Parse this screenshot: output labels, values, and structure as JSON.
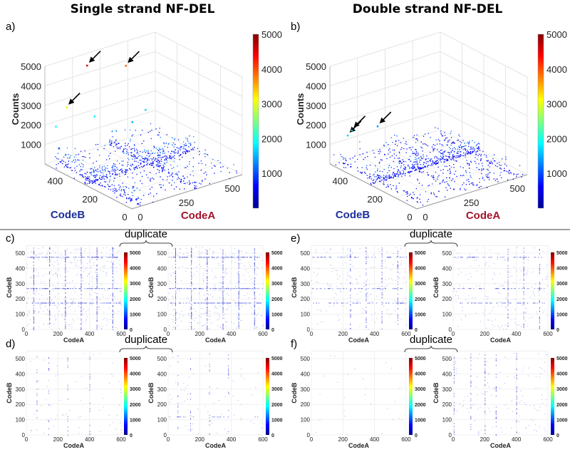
{
  "titles": {
    "left": "Single strand NF-DEL",
    "right": "Double strand NF-DEL"
  },
  "duplicate_label": "duplicate",
  "chart_data": [
    {
      "panel": "a)",
      "type": "scatter3d",
      "title": "Single strand NF-DEL",
      "xlabel": "CodeA",
      "ylabel": "CodeB",
      "zlabel": "Counts",
      "xlim": [
        0,
        600
      ],
      "ylim": [
        0,
        500
      ],
      "zlim": [
        0,
        5000
      ],
      "xticks": [
        0,
        250,
        500
      ],
      "yticks": [
        0,
        200,
        400
      ],
      "zticks": [
        1000,
        2000,
        3000,
        4000,
        5000
      ],
      "colorbar": {
        "colormap": "jet",
        "range": [
          0,
          5000
        ],
        "ticks": [
          1000,
          2000,
          3000,
          4000,
          5000
        ]
      },
      "highlighted_points": [
        {
          "codeA": 200,
          "codeB": 470,
          "count": 4600,
          "arrow": true
        },
        {
          "codeA": 420,
          "codeB": 480,
          "count": 3900,
          "arrow": true
        },
        {
          "codeA": 60,
          "codeB": 440,
          "count": 3000,
          "arrow": true
        },
        {
          "codeA": 40,
          "codeB": 480,
          "count": 1900
        },
        {
          "codeA": 250,
          "codeB": 480,
          "count": 1800
        },
        {
          "codeA": 480,
          "codeB": 430,
          "count": 1700
        },
        {
          "codeA": 380,
          "codeB": 400,
          "count": 1500
        },
        {
          "codeA": 10,
          "codeB": 430,
          "count": 1100
        }
      ],
      "dense_lines_codeA": [
        45,
        145,
        245,
        345,
        445,
        545
      ],
      "dense_lines_codeB": [
        175,
        270,
        475
      ],
      "background_count_range": [
        0,
        1000
      ]
    },
    {
      "panel": "b)",
      "type": "scatter3d",
      "title": "Double strand NF-DEL",
      "xlabel": "CodeA",
      "ylabel": "CodeB",
      "zlabel": "Counts",
      "xlim": [
        0,
        600
      ],
      "ylim": [
        0,
        500
      ],
      "zlim": [
        0,
        5000
      ],
      "xticks": [
        0,
        250,
        500
      ],
      "yticks": [
        0,
        200,
        400
      ],
      "zticks": [
        1000,
        2000,
        3000,
        4000,
        5000
      ],
      "colorbar": {
        "colormap": "jet",
        "range": [
          0,
          5000
        ],
        "ticks": [
          1000,
          2000,
          3000,
          4000,
          5000
        ]
      },
      "highlighted_points": [
        {
          "codeA": 30,
          "codeB": 430,
          "count": 1700,
          "arrow": true
        },
        {
          "codeA": 90,
          "codeB": 470,
          "count": 1600,
          "arrow": true
        },
        {
          "codeA": 230,
          "codeB": 470,
          "count": 1400,
          "arrow": true
        }
      ],
      "dense_lines_codeA": [
        45,
        245,
        345,
        445,
        545
      ],
      "dense_lines_codeB": [
        175,
        270,
        475
      ],
      "background_count_range": [
        0,
        800
      ]
    },
    {
      "panel": "c)",
      "type": "scatter",
      "role": "replicate-1",
      "xlabel": "CodeA",
      "ylabel": "CodeB",
      "xlim": [
        0,
        600
      ],
      "ylim": [
        0,
        550
      ],
      "xticks": [
        0,
        200,
        400,
        600
      ],
      "yticks": [
        0,
        100,
        200,
        300,
        400,
        500
      ],
      "colorbar": {
        "colormap": "jet",
        "range": [
          0,
          5000
        ],
        "ticks": [
          0,
          1000,
          2000,
          3000,
          4000,
          5000
        ]
      },
      "dense_lines_codeA": [
        45,
        145,
        245,
        345,
        445,
        545
      ],
      "dense_lines_codeB": [
        175,
        270,
        475
      ]
    },
    {
      "panel": "c)",
      "type": "scatter",
      "role": "replicate-2",
      "xlabel": "CodeA",
      "ylabel": "CodeB",
      "xlim": [
        0,
        600
      ],
      "ylim": [
        0,
        550
      ],
      "xticks": [
        0,
        200,
        400,
        600
      ],
      "yticks": [
        0,
        100,
        200,
        300,
        400,
        500
      ],
      "colorbar": {
        "colormap": "jet",
        "range": [
          0,
          5000
        ],
        "ticks": [
          0,
          1000,
          2000,
          3000,
          4000,
          5000
        ]
      },
      "dense_lines_codeA": [
        45,
        145,
        245,
        345,
        445,
        545
      ],
      "dense_lines_codeB": [
        175,
        270,
        475
      ]
    },
    {
      "panel": "d)",
      "type": "scatter",
      "role": "replicate-1",
      "xlabel": "CodeA",
      "ylabel": "CodeB",
      "xlim": [
        0,
        600
      ],
      "ylim": [
        0,
        550
      ],
      "xticks": [
        0,
        200,
        400,
        600
      ],
      "yticks": [
        0,
        100,
        200,
        300,
        400,
        500
      ],
      "colorbar": {
        "colormap": "jet",
        "range": [
          0,
          5000
        ],
        "ticks": [
          0,
          1000,
          2000,
          3000,
          4000,
          5000
        ]
      },
      "dense_lines_codeA": [
        65,
        140,
        260,
        400
      ],
      "dense_lines_codeB": []
    },
    {
      "panel": "d)",
      "type": "scatter",
      "role": "replicate-2",
      "xlabel": "CodeA",
      "ylabel": "CodeB",
      "xlim": [
        0,
        600
      ],
      "ylim": [
        0,
        550
      ],
      "xticks": [
        0,
        200,
        400,
        600
      ],
      "yticks": [
        0,
        100,
        200,
        300,
        400,
        500
      ],
      "colorbar": {
        "colormap": "jet",
        "range": [
          0,
          5000
        ],
        "ticks": [
          0,
          1000,
          2000,
          3000,
          4000,
          5000
        ]
      },
      "dense_lines_codeA": [
        60,
        140,
        260,
        380
      ],
      "dense_lines_codeB": [
        120
      ]
    },
    {
      "panel": "e)",
      "type": "scatter",
      "role": "replicate-1",
      "xlabel": "CodeA",
      "ylabel": "CodeB",
      "xlim": [
        0,
        600
      ],
      "ylim": [
        0,
        550
      ],
      "xticks": [
        0,
        200,
        400,
        600
      ],
      "yticks": [
        0,
        100,
        200,
        300,
        400,
        500
      ],
      "colorbar": {
        "colormap": "jet",
        "range": [
          0,
          5000
        ],
        "ticks": [
          0,
          1000,
          2000,
          3000,
          4000,
          5000
        ]
      },
      "dense_lines_codeA": [
        245,
        345,
        445,
        545
      ],
      "dense_lines_codeB": [
        175,
        270,
        475
      ]
    },
    {
      "panel": "e)",
      "type": "scatter",
      "role": "replicate-2",
      "xlabel": "CodeA",
      "ylabel": "CodeB",
      "xlim": [
        0,
        600
      ],
      "ylim": [
        0,
        550
      ],
      "xticks": [
        0,
        200,
        400,
        600
      ],
      "yticks": [
        0,
        100,
        200,
        300,
        400,
        500
      ],
      "colorbar": {
        "colormap": "jet",
        "range": [
          0,
          5000
        ],
        "ticks": [
          0,
          1000,
          2000,
          3000,
          4000,
          5000
        ]
      },
      "dense_lines_codeA": [
        345,
        445,
        545
      ],
      "dense_lines_codeB": [
        175,
        270,
        475
      ]
    },
    {
      "panel": "f)",
      "type": "scatter",
      "role": "replicate-1",
      "xlabel": "CodeA",
      "ylabel": "CodeB",
      "xlim": [
        0,
        600
      ],
      "ylim": [
        0,
        550
      ],
      "xticks": [
        0,
        200,
        400,
        600
      ],
      "yticks": [
        0,
        100,
        200,
        300,
        400,
        500
      ],
      "colorbar": {
        "colormap": "jet",
        "range": [
          0,
          5000
        ],
        "ticks": [
          0,
          1000,
          2000,
          3000,
          4000,
          5000
        ]
      },
      "dense_lines_codeA": [],
      "dense_lines_codeB": []
    },
    {
      "panel": "f)",
      "type": "scatter",
      "role": "replicate-2",
      "xlabel": "CodeA",
      "ylabel": "CodeB",
      "xlim": [
        0,
        600
      ],
      "ylim": [
        0,
        550
      ],
      "xticks": [
        0,
        200,
        400,
        600
      ],
      "yticks": [
        0,
        100,
        200,
        300,
        400,
        500
      ],
      "colorbar": {
        "colormap": "jet",
        "range": [
          0,
          5000
        ],
        "ticks": [
          0,
          1000,
          2000,
          3000,
          4000,
          5000
        ]
      },
      "dense_lines_codeA": [
        5,
        110,
        200,
        270,
        400
      ],
      "dense_lines_codeB": []
    }
  ]
}
